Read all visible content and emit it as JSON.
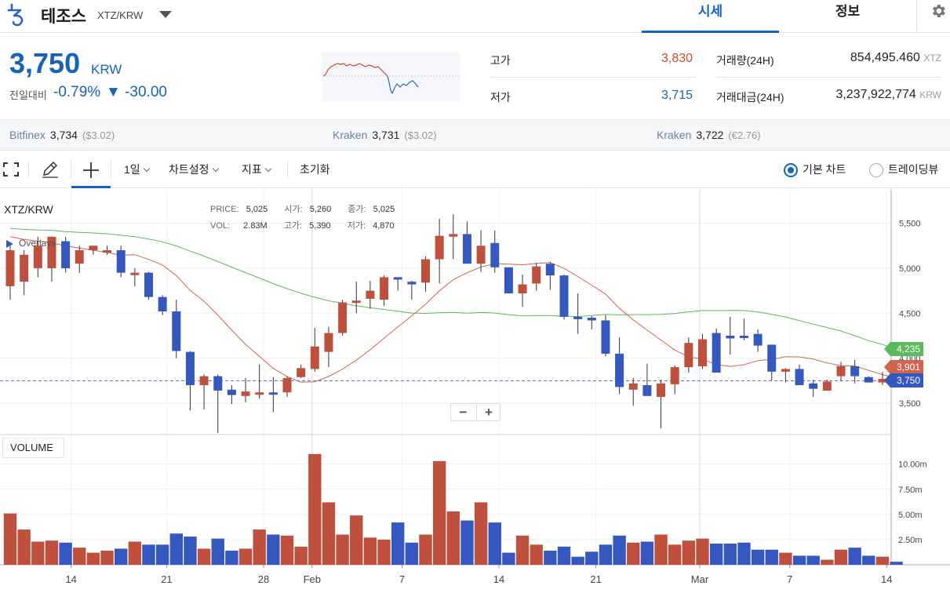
{
  "header": {
    "coin_name": "테조스",
    "pair": "XTZ/KRW",
    "tabs": [
      {
        "label": "시세"
      },
      {
        "label": "정보"
      }
    ]
  },
  "price": {
    "current": "3,750",
    "unit": "KRW",
    "change_label": "전일대비",
    "change_rate": "-0.79%",
    "change_value": "▼ -30.00"
  },
  "stats": {
    "high_label": "고가",
    "high_value": "3,830",
    "low_label": "저가",
    "low_value": "3,715",
    "volume_label": "거래량(24H)",
    "volume_value": "854,495.460",
    "volume_unit": "XTZ",
    "amount_label": "거래대금(24H)",
    "amount_value": "3,237,922,774",
    "amount_unit": "KRW"
  },
  "exchanges": [
    {
      "name": "Bitfinex",
      "price": "3,734",
      "sub": "($3.02)"
    },
    {
      "name": "Kraken",
      "price": "3,731",
      "sub": "($3.02)"
    },
    {
      "name": "Kraken",
      "price": "3,722",
      "sub": "(€2.76)"
    }
  ],
  "toolbar": {
    "interval": "1일",
    "chart_settings": "차트설정",
    "indicators": "지표",
    "reset": "초기화",
    "basic_chart": "기본 차트",
    "tradingview": "트레이딩뷰"
  },
  "chart": {
    "pair_label": "XTZ/KRW",
    "overlay_label": "Overlays",
    "legend": {
      "price_k": "PRICE:",
      "price_v": "5,025",
      "open_k": "시가:",
      "open_v": "5,260",
      "close_k": "종가:",
      "close_v": "5,025",
      "vol_k": "VOL:",
      "vol_v": "2.83M",
      "high_k": "고가:",
      "high_v": "5,390",
      "low_k": "저가:",
      "low_v": "4,870"
    },
    "volume_label": "VOLUME",
    "zoom_out": "−",
    "zoom_in": "+",
    "tags": {
      "ma_long": "4,235",
      "ma_short": "3,901",
      "last": "3,750"
    },
    "colors": {
      "up": "#c0503e",
      "down": "#3558c0",
      "ma_long": "#5cb85c",
      "ma_short": "#d0644f"
    }
  },
  "chart_data": {
    "type": "candlestick",
    "x_ticks": [
      "14",
      "21",
      "28",
      "Feb",
      "7",
      "14",
      "21",
      "Mar",
      "7",
      "14"
    ],
    "y_ticks": [
      "5,500",
      "5,000",
      "4,500",
      "4,000",
      "3,500"
    ],
    "volume_ticks": [
      "10.00m",
      "7.50m",
      "5.00m",
      "2.50m"
    ],
    "ylim": [
      3160,
      5880
    ],
    "volume_max_m": 12,
    "candles": [
      [
        4800,
        5200,
        4650,
        5250
      ],
      [
        4850,
        5150,
        4700,
        5200
      ],
      [
        5000,
        5250,
        4900,
        5350
      ],
      [
        5000,
        5350,
        4850,
        5350
      ],
      [
        5300,
        5000,
        4950,
        5350
      ],
      [
        5050,
        5200,
        4950,
        5250
      ],
      [
        5200,
        5250,
        5150,
        5250
      ],
      [
        5200,
        5200,
        5150,
        5250
      ],
      [
        5200,
        4950,
        4900,
        5250
      ],
      [
        4950,
        4950,
        4800,
        5000
      ],
      [
        4950,
        4680,
        4650,
        4960
      ],
      [
        4680,
        4520,
        4480,
        4700
      ],
      [
        4520,
        4080,
        4000,
        4650
      ],
      [
        4070,
        3700,
        3420,
        4080
      ],
      [
        3700,
        3800,
        3430,
        3820
      ],
      [
        3800,
        3640,
        3170,
        3820
      ],
      [
        3650,
        3590,
        3490,
        3700
      ],
      [
        3580,
        3630,
        3510,
        3780
      ],
      [
        3620,
        3620,
        3550,
        3930
      ],
      [
        3620,
        3600,
        3400,
        3790
      ],
      [
        3620,
        3780,
        3570,
        3800
      ],
      [
        3790,
        3890,
        3780,
        3930
      ],
      [
        3880,
        4130,
        3850,
        4340
      ],
      [
        4070,
        4280,
        3900,
        4350
      ],
      [
        4280,
        4620,
        4250,
        4650
      ],
      [
        4630,
        4640,
        4500,
        4850
      ],
      [
        4660,
        4750,
        4550,
        4860
      ],
      [
        4650,
        4900,
        4580,
        4920
      ],
      [
        4900,
        4880,
        4750,
        4900
      ],
      [
        4850,
        4820,
        4650,
        4860
      ],
      [
        4840,
        5100,
        4740,
        5130
      ],
      [
        5100,
        5360,
        4830,
        5550
      ],
      [
        5350,
        5380,
        5100,
        5600
      ],
      [
        5380,
        5050,
        5060,
        5520
      ],
      [
        5050,
        5250,
        4960,
        5420
      ],
      [
        5280,
        5010,
        4950,
        5420
      ],
      [
        5010,
        4720,
        4720,
        5010
      ],
      [
        4720,
        4820,
        4570,
        4930
      ],
      [
        4830,
        5020,
        4750,
        5060
      ],
      [
        5050,
        4920,
        4760,
        5070
      ],
      [
        4920,
        4460,
        4430,
        4930
      ],
      [
        4460,
        4450,
        4270,
        4720
      ],
      [
        4450,
        4420,
        4320,
        4470
      ],
      [
        4420,
        4050,
        4020,
        4480
      ],
      [
        4050,
        3680,
        3600,
        4230
      ],
      [
        3650,
        3720,
        3470,
        3780
      ],
      [
        3700,
        3580,
        3580,
        3940
      ],
      [
        3570,
        3720,
        3220,
        3760
      ],
      [
        3710,
        3900,
        3600,
        3920
      ],
      [
        3900,
        4170,
        3840,
        4230
      ],
      [
        3910,
        4210,
        3880,
        4270
      ],
      [
        4280,
        3840,
        3840,
        4330
      ],
      [
        4250,
        4220,
        4040,
        4460
      ],
      [
        4250,
        4230,
        4200,
        4440
      ],
      [
        4270,
        4140,
        4070,
        4320
      ],
      [
        4150,
        3850,
        3750,
        4150
      ],
      [
        3850,
        3880,
        3730,
        3890
      ],
      [
        3880,
        3700,
        3700,
        3930
      ],
      [
        3720,
        3660,
        3570,
        3760
      ],
      [
        3640,
        3740,
        3640,
        3760
      ],
      [
        3800,
        3910,
        3750,
        3960
      ],
      [
        3910,
        3800,
        3720,
        3980
      ],
      [
        3790,
        3730,
        3730,
        3800
      ],
      [
        3730,
        3770,
        3700,
        3850
      ],
      [
        3790,
        3740,
        3720,
        3810
      ]
    ],
    "volume_m": [
      5.1,
      3.5,
      2.3,
      2.4,
      2.2,
      1.7,
      1.2,
      1.4,
      1.6,
      2.3,
      2.0,
      2.0,
      3.1,
      2.8,
      1.6,
      2.6,
      1.4,
      1.6,
      3.5,
      3.0,
      2.9,
      1.8,
      11.0,
      6.2,
      3.0,
      4.9,
      2.7,
      2.5,
      4.2,
      2.2,
      3.0,
      10.3,
      5.3,
      4.4,
      6.2,
      4.2,
      1.2,
      2.9,
      2.0,
      1.4,
      1.8,
      0.8,
      1.3,
      2.0,
      2.9,
      2.2,
      2.3,
      3.0,
      2.0,
      2.4,
      2.6,
      2.1,
      2.1,
      2.2,
      1.5,
      1.5,
      1.2,
      0.9,
      0.9,
      0.5,
      1.5,
      1.7,
      0.9,
      0.8,
      0.3
    ]
  }
}
